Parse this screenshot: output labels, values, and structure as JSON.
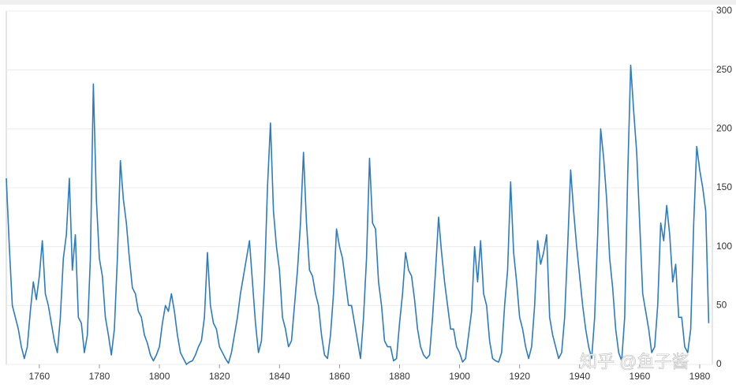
{
  "chart_data": {
    "type": "line",
    "watermark": "知乎 @鱼子酱",
    "x": [
      1749,
      1750,
      1751,
      1752,
      1753,
      1754,
      1755,
      1756,
      1757,
      1758,
      1759,
      1760,
      1761,
      1762,
      1763,
      1764,
      1765,
      1766,
      1767,
      1768,
      1769,
      1770,
      1771,
      1772,
      1773,
      1774,
      1775,
      1776,
      1777,
      1778,
      1779,
      1780,
      1781,
      1782,
      1783,
      1784,
      1785,
      1786,
      1787,
      1788,
      1789,
      1790,
      1791,
      1792,
      1793,
      1794,
      1795,
      1796,
      1797,
      1798,
      1799,
      1800,
      1801,
      1802,
      1803,
      1804,
      1805,
      1806,
      1807,
      1808,
      1809,
      1810,
      1811,
      1812,
      1813,
      1814,
      1815,
      1816,
      1817,
      1818,
      1819,
      1820,
      1821,
      1822,
      1823,
      1824,
      1825,
      1826,
      1827,
      1828,
      1829,
      1830,
      1831,
      1832,
      1833,
      1834,
      1835,
      1836,
      1837,
      1838,
      1839,
      1840,
      1841,
      1842,
      1843,
      1844,
      1845,
      1846,
      1847,
      1848,
      1849,
      1850,
      1851,
      1852,
      1853,
      1854,
      1855,
      1856,
      1857,
      1858,
      1859,
      1860,
      1861,
      1862,
      1863,
      1864,
      1865,
      1866,
      1867,
      1868,
      1869,
      1870,
      1871,
      1872,
      1873,
      1874,
      1875,
      1876,
      1877,
      1878,
      1879,
      1880,
      1881,
      1882,
      1883,
      1884,
      1885,
      1886,
      1887,
      1888,
      1889,
      1890,
      1891,
      1892,
      1893,
      1894,
      1895,
      1896,
      1897,
      1898,
      1899,
      1900,
      1901,
      1902,
      1903,
      1904,
      1905,
      1906,
      1907,
      1908,
      1909,
      1910,
      1911,
      1912,
      1913,
      1914,
      1915,
      1916,
      1917,
      1918,
      1919,
      1920,
      1921,
      1922,
      1923,
      1924,
      1925,
      1926,
      1927,
      1928,
      1929,
      1930,
      1931,
      1932,
      1933,
      1934,
      1935,
      1936,
      1937,
      1938,
      1939,
      1940,
      1941,
      1942,
      1943,
      1944,
      1945,
      1946,
      1947,
      1948,
      1949,
      1950,
      1951,
      1952,
      1953,
      1954,
      1955,
      1956,
      1957,
      1958,
      1959,
      1960,
      1961,
      1962,
      1963,
      1964,
      1965,
      1966,
      1967,
      1968,
      1969,
      1970,
      1971,
      1972,
      1973,
      1974,
      1975,
      1976,
      1977,
      1978,
      1979,
      1980,
      1981,
      1982,
      1983
    ],
    "series": [
      {
        "color": "#2e7bbf",
        "values": [
          158,
          100,
          50,
          40,
          30,
          15,
          5,
          15,
          45,
          70,
          55,
          75,
          105,
          60,
          50,
          35,
          20,
          10,
          40,
          90,
          110,
          158,
          80,
          110,
          40,
          35,
          10,
          25,
          90,
          238,
          140,
          90,
          75,
          40,
          25,
          8,
          30,
          90,
          173,
          140,
          120,
          90,
          65,
          60,
          45,
          40,
          25,
          18,
          8,
          3,
          8,
          15,
          35,
          50,
          45,
          60,
          45,
          25,
          10,
          5,
          0,
          2,
          3,
          8,
          15,
          20,
          40,
          95,
          50,
          35,
          30,
          15,
          10,
          5,
          1,
          10,
          25,
          40,
          60,
          75,
          90,
          105,
          70,
          35,
          10,
          20,
          70,
          150,
          205,
          130,
          100,
          80,
          40,
          30,
          15,
          20,
          50,
          80,
          120,
          180,
          120,
          80,
          75,
          60,
          50,
          25,
          8,
          5,
          25,
          60,
          115,
          100,
          90,
          70,
          50,
          50,
          35,
          20,
          5,
          40,
          90,
          175,
          120,
          115,
          70,
          50,
          20,
          15,
          15,
          3,
          5,
          35,
          60,
          95,
          80,
          75,
          55,
          30,
          15,
          8,
          5,
          8,
          40,
          80,
          125,
          95,
          70,
          50,
          30,
          30,
          15,
          10,
          2,
          5,
          25,
          45,
          100,
          70,
          105,
          60,
          50,
          20,
          5,
          3,
          2,
          10,
          50,
          80,
          155,
          95,
          70,
          40,
          30,
          15,
          5,
          15,
          50,
          105,
          85,
          95,
          110,
          40,
          25,
          15,
          5,
          10,
          40,
          100,
          165,
          130,
          100,
          75,
          50,
          30,
          15,
          5,
          40,
          110,
          200,
          175,
          140,
          90,
          65,
          30,
          10,
          3,
          40,
          160,
          254,
          215,
          180,
          120,
          60,
          45,
          30,
          10,
          15,
          50,
          120,
          105,
          135,
          110,
          70,
          85,
          40,
          40,
          15,
          10,
          30,
          120,
          185,
          165,
          150,
          130,
          35
        ]
      }
    ],
    "xlim": [
      1749,
      1984.2
    ],
    "xticks": [
      1760,
      1780,
      1800,
      1820,
      1840,
      1860,
      1880,
      1900,
      1920,
      1940,
      1960,
      1980
    ],
    "ylim": [
      0,
      300
    ],
    "yticks": [
      0,
      50,
      100,
      150,
      200,
      250,
      300
    ],
    "grid": true
  }
}
